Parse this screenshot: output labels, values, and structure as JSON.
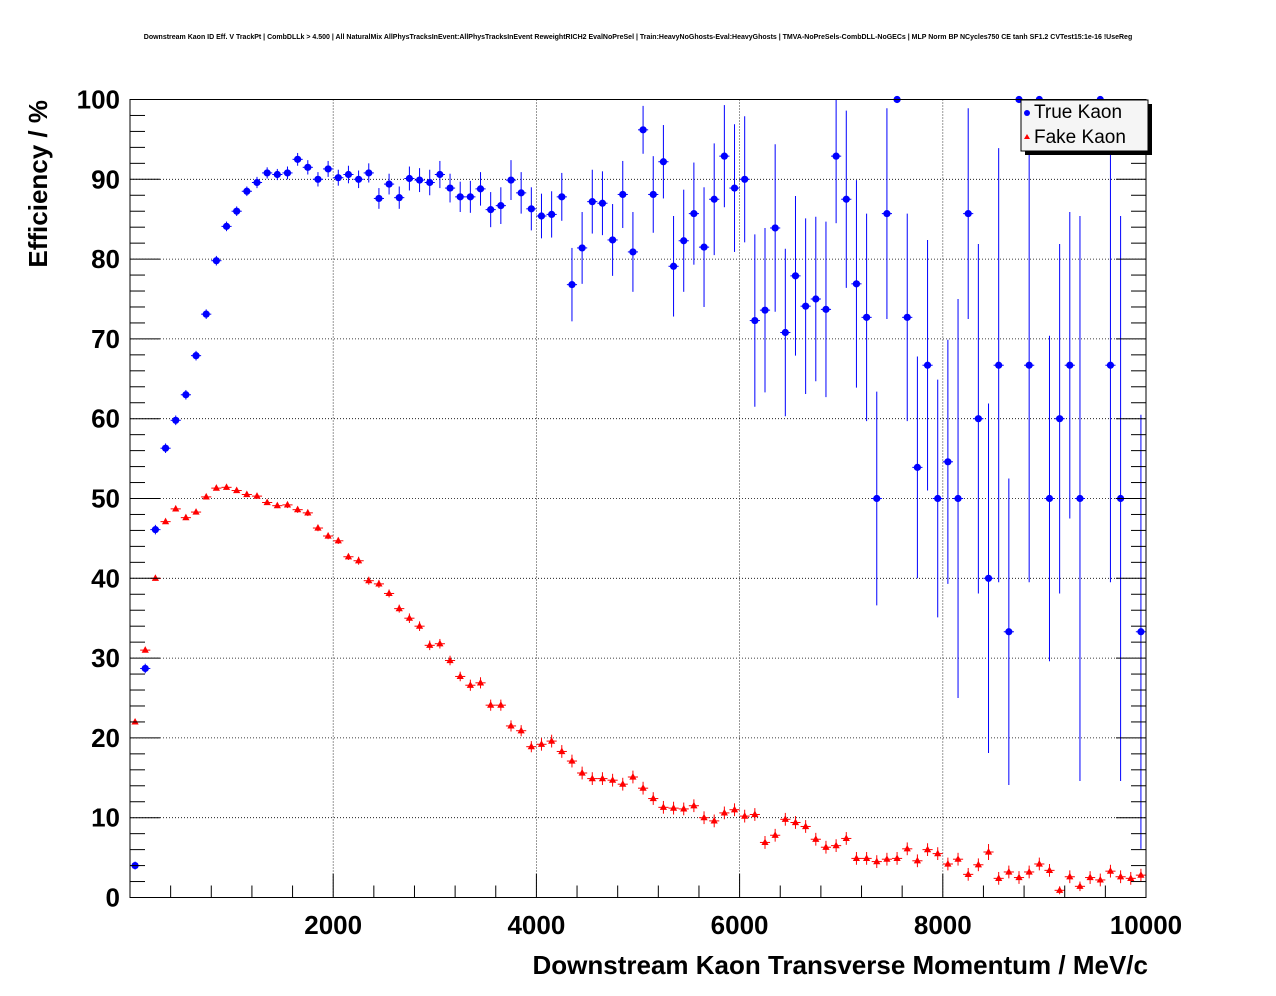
{
  "chart_data": {
    "type": "scatter",
    "title": "Downstream Kaon ID Eff. V TrackPt | CombDLLk > 4.500 | All NaturalMix AllPhysTracksInEvent:AllPhysTracksInEvent ReweightRICH2 EvalNoPreSel | Train:HeavyNoGhosts-Eval:HeavyGhosts | TMVA-NoPreSels-CombDLL-NoGECs | MLP Norm BP NCycles750 CE tanh SF1.2 CVTest15:1e-16 !UseReg",
    "xlabel": "Downstream Kaon Transverse Momentum / MeV/c",
    "ylabel": "Efficiency / %",
    "xlim": [
      0,
      10000
    ],
    "ylim": [
      0,
      100
    ],
    "grid": true,
    "legend_position": "top-right",
    "x_ticks": [
      {
        "value": 2000,
        "label": "2000"
      },
      {
        "value": 4000,
        "label": "4000"
      },
      {
        "value": 6000,
        "label": "6000"
      },
      {
        "value": 8000,
        "label": "8000"
      },
      {
        "value": 10000,
        "label": "10000"
      }
    ],
    "y_ticks": [
      {
        "value": 0,
        "label": "0"
      },
      {
        "value": 10,
        "label": "10"
      },
      {
        "value": 20,
        "label": "20"
      },
      {
        "value": 30,
        "label": "30"
      },
      {
        "value": 40,
        "label": "40"
      },
      {
        "value": 50,
        "label": "50"
      },
      {
        "value": 60,
        "label": "60"
      },
      {
        "value": 70,
        "label": "70"
      },
      {
        "value": 80,
        "label": "80"
      },
      {
        "value": 90,
        "label": "90"
      },
      {
        "value": 100,
        "label": "100"
      }
    ],
    "bin_width": 100,
    "series": [
      {
        "name": "True Kaon",
        "color": "#0000ff",
        "marker": "circle",
        "points": [
          [
            50,
            4.0,
            0.5
          ],
          [
            150,
            28.7,
            0.6
          ],
          [
            250,
            46.1,
            0.6
          ],
          [
            350,
            56.3,
            0.6
          ],
          [
            450,
            59.8,
            0.6
          ],
          [
            550,
            63.0,
            0.6
          ],
          [
            650,
            67.9,
            0.6
          ],
          [
            750,
            73.1,
            0.6
          ],
          [
            850,
            79.8,
            0.6
          ],
          [
            950,
            84.1,
            0.6
          ],
          [
            1050,
            86.0,
            0.6
          ],
          [
            1150,
            88.5,
            0.6
          ],
          [
            1250,
            89.6,
            0.7
          ],
          [
            1350,
            90.8,
            0.7
          ],
          [
            1450,
            90.6,
            0.7
          ],
          [
            1550,
            90.8,
            0.8
          ],
          [
            1650,
            92.5,
            0.8
          ],
          [
            1750,
            91.5,
            0.9
          ],
          [
            1850,
            90.0,
            0.9
          ],
          [
            1950,
            91.3,
            1.0
          ],
          [
            2050,
            90.2,
            1.0
          ],
          [
            2150,
            90.6,
            1.1
          ],
          [
            2250,
            90.0,
            1.1
          ],
          [
            2350,
            90.8,
            1.2
          ],
          [
            2450,
            87.6,
            1.3
          ],
          [
            2550,
            89.4,
            1.3
          ],
          [
            2650,
            87.7,
            1.4
          ],
          [
            2750,
            90.1,
            1.5
          ],
          [
            2850,
            89.9,
            1.5
          ],
          [
            2950,
            89.6,
            1.6
          ],
          [
            3050,
            90.6,
            1.7
          ],
          [
            3150,
            88.9,
            1.8
          ],
          [
            3250,
            87.8,
            1.9
          ],
          [
            3350,
            87.8,
            2.0
          ],
          [
            3450,
            88.8,
            2.1
          ],
          [
            3550,
            86.2,
            2.2
          ],
          [
            3650,
            86.7,
            2.3
          ],
          [
            3750,
            89.9,
            2.5
          ],
          [
            3850,
            88.3,
            2.6
          ],
          [
            3950,
            86.3,
            2.7
          ],
          [
            4050,
            85.4,
            2.8
          ],
          [
            4150,
            85.6,
            2.9
          ],
          [
            4250,
            87.8,
            3.0
          ],
          [
            4350,
            76.8,
            4.6
          ],
          [
            4450,
            81.4,
            4.5
          ],
          [
            4550,
            87.2,
            4.0
          ],
          [
            4650,
            87.0,
            4.0
          ],
          [
            4750,
            82.4,
            4.5
          ],
          [
            4850,
            88.1,
            4.2
          ],
          [
            4950,
            80.9,
            5.0
          ],
          [
            5050,
            96.2,
            3.0
          ],
          [
            5150,
            88.1,
            4.8
          ],
          [
            5250,
            92.2,
            4.6
          ],
          [
            5350,
            79.1,
            6.3
          ],
          [
            5450,
            82.3,
            6.4
          ],
          [
            5550,
            85.7,
            6.4
          ],
          [
            5650,
            81.5,
            7.5
          ],
          [
            5750,
            87.5,
            7.0
          ],
          [
            5850,
            92.9,
            6.4
          ],
          [
            5950,
            88.9,
            8.0
          ],
          [
            6050,
            90.0,
            7.9
          ],
          [
            6150,
            72.3,
            10.8
          ],
          [
            6250,
            73.6,
            10.3
          ],
          [
            6350,
            83.9,
            10.5
          ],
          [
            6450,
            70.8,
            10.5
          ],
          [
            6550,
            77.9,
            10.0
          ],
          [
            6650,
            74.1,
            11.0
          ],
          [
            6750,
            75.0,
            10.3
          ],
          [
            6850,
            73.7,
            11.0
          ],
          [
            6950,
            92.9,
            8.4
          ],
          [
            7050,
            87.5,
            11.1
          ],
          [
            7150,
            76.9,
            13.0
          ],
          [
            7250,
            72.7,
            13.0
          ],
          [
            7350,
            50.0,
            13.4
          ],
          [
            7450,
            85.7,
            13.2
          ],
          [
            7550,
            100.0,
            0.0
          ],
          [
            7650,
            72.7,
            13.0
          ],
          [
            7750,
            53.9,
            13.9
          ],
          [
            7850,
            66.7,
            15.7
          ],
          [
            7950,
            50.0,
            14.9
          ],
          [
            8050,
            54.6,
            15.3
          ],
          [
            8150,
            50.0,
            25.0
          ],
          [
            8250,
            85.7,
            13.2
          ],
          [
            8350,
            60.0,
            21.9
          ],
          [
            8450,
            40.0,
            21.9
          ],
          [
            8550,
            66.7,
            27.2
          ],
          [
            8650,
            33.3,
            19.2
          ],
          [
            8750,
            100.0,
            0.0
          ],
          [
            8850,
            66.7,
            27.2
          ],
          [
            8950,
            100.0,
            0.0
          ],
          [
            9050,
            50.0,
            20.4
          ],
          [
            9150,
            60.0,
            21.9
          ],
          [
            9250,
            66.7,
            19.2
          ],
          [
            9350,
            50.0,
            35.4
          ],
          [
            9550,
            100.0,
            0.0
          ],
          [
            9650,
            66.7,
            27.2
          ],
          [
            9750,
            50.0,
            35.4
          ],
          [
            9950,
            33.3,
            27.2
          ]
        ]
      },
      {
        "name": "Fake Kaon",
        "color": "#ff0000",
        "marker": "triangle",
        "points": [
          [
            50,
            22.0,
            0.3
          ],
          [
            150,
            31.0,
            0.3
          ],
          [
            250,
            40.0,
            0.3
          ],
          [
            350,
            47.1,
            0.3
          ],
          [
            450,
            48.7,
            0.3
          ],
          [
            550,
            47.6,
            0.3
          ],
          [
            650,
            48.3,
            0.3
          ],
          [
            750,
            50.2,
            0.3
          ],
          [
            850,
            51.3,
            0.3
          ],
          [
            950,
            51.4,
            0.3
          ],
          [
            1050,
            51.0,
            0.3
          ],
          [
            1150,
            50.5,
            0.3
          ],
          [
            1250,
            50.3,
            0.3
          ],
          [
            1350,
            49.5,
            0.3
          ],
          [
            1450,
            49.1,
            0.3
          ],
          [
            1550,
            49.2,
            0.4
          ],
          [
            1650,
            48.6,
            0.4
          ],
          [
            1750,
            48.2,
            0.4
          ],
          [
            1850,
            46.3,
            0.4
          ],
          [
            1950,
            45.3,
            0.4
          ],
          [
            2050,
            44.7,
            0.4
          ],
          [
            2150,
            42.7,
            0.4
          ],
          [
            2250,
            42.2,
            0.5
          ],
          [
            2350,
            39.7,
            0.5
          ],
          [
            2450,
            39.3,
            0.5
          ],
          [
            2550,
            38.1,
            0.5
          ],
          [
            2650,
            36.2,
            0.5
          ],
          [
            2750,
            35.0,
            0.6
          ],
          [
            2850,
            34.0,
            0.6
          ],
          [
            2950,
            31.6,
            0.6
          ],
          [
            3050,
            31.8,
            0.6
          ],
          [
            3150,
            29.7,
            0.6
          ],
          [
            3250,
            27.7,
            0.6
          ],
          [
            3350,
            26.6,
            0.7
          ],
          [
            3450,
            26.9,
            0.7
          ],
          [
            3550,
            24.1,
            0.7
          ],
          [
            3650,
            24.1,
            0.7
          ],
          [
            3750,
            21.5,
            0.7
          ],
          [
            3850,
            20.9,
            0.7
          ],
          [
            3950,
            18.9,
            0.7
          ],
          [
            4050,
            19.2,
            0.8
          ],
          [
            4150,
            19.6,
            0.8
          ],
          [
            4250,
            18.3,
            0.8
          ],
          [
            4350,
            17.1,
            0.8
          ],
          [
            4450,
            15.6,
            0.8
          ],
          [
            4550,
            14.9,
            0.8
          ],
          [
            4650,
            14.9,
            0.8
          ],
          [
            4750,
            14.7,
            0.8
          ],
          [
            4850,
            14.2,
            0.8
          ],
          [
            4950,
            15.1,
            0.8
          ],
          [
            5050,
            13.7,
            0.8
          ],
          [
            5150,
            12.4,
            0.8
          ],
          [
            5250,
            11.3,
            0.8
          ],
          [
            5350,
            11.2,
            0.8
          ],
          [
            5450,
            11.1,
            0.8
          ],
          [
            5550,
            11.5,
            0.8
          ],
          [
            5650,
            10.0,
            0.8
          ],
          [
            5750,
            9.6,
            0.8
          ],
          [
            5850,
            10.6,
            0.8
          ],
          [
            5950,
            11.0,
            0.8
          ],
          [
            6050,
            10.2,
            0.8
          ],
          [
            6150,
            10.4,
            0.8
          ],
          [
            6250,
            6.9,
            0.8
          ],
          [
            6350,
            7.8,
            0.8
          ],
          [
            6450,
            9.8,
            0.8
          ],
          [
            6550,
            9.4,
            0.8
          ],
          [
            6650,
            8.9,
            0.8
          ],
          [
            6750,
            7.3,
            0.8
          ],
          [
            6850,
            6.3,
            0.8
          ],
          [
            6950,
            6.5,
            0.8
          ],
          [
            7050,
            7.4,
            0.8
          ],
          [
            7150,
            4.9,
            0.8
          ],
          [
            7250,
            4.9,
            0.8
          ],
          [
            7350,
            4.5,
            0.8
          ],
          [
            7450,
            4.8,
            0.8
          ],
          [
            7550,
            4.9,
            0.8
          ],
          [
            7650,
            6.1,
            0.8
          ],
          [
            7750,
            4.6,
            0.8
          ],
          [
            7850,
            6.0,
            0.8
          ],
          [
            7950,
            5.5,
            0.8
          ],
          [
            8050,
            4.2,
            0.8
          ],
          [
            8150,
            4.8,
            0.8
          ],
          [
            8250,
            2.9,
            0.8
          ],
          [
            8350,
            4.1,
            0.8
          ],
          [
            8450,
            5.7,
            1.0
          ],
          [
            8550,
            2.4,
            0.8
          ],
          [
            8650,
            3.2,
            0.8
          ],
          [
            8750,
            2.5,
            0.8
          ],
          [
            8850,
            3.2,
            0.8
          ],
          [
            8950,
            4.2,
            0.8
          ],
          [
            9050,
            3.4,
            0.8
          ],
          [
            9150,
            0.9,
            0.5
          ],
          [
            9250,
            2.6,
            0.8
          ],
          [
            9350,
            1.4,
            0.6
          ],
          [
            9450,
            2.5,
            0.8
          ],
          [
            9550,
            2.2,
            0.8
          ],
          [
            9650,
            3.3,
            0.8
          ],
          [
            9750,
            2.6,
            0.8
          ],
          [
            9850,
            2.4,
            0.8
          ],
          [
            9950,
            2.8,
            0.8
          ]
        ]
      }
    ]
  }
}
